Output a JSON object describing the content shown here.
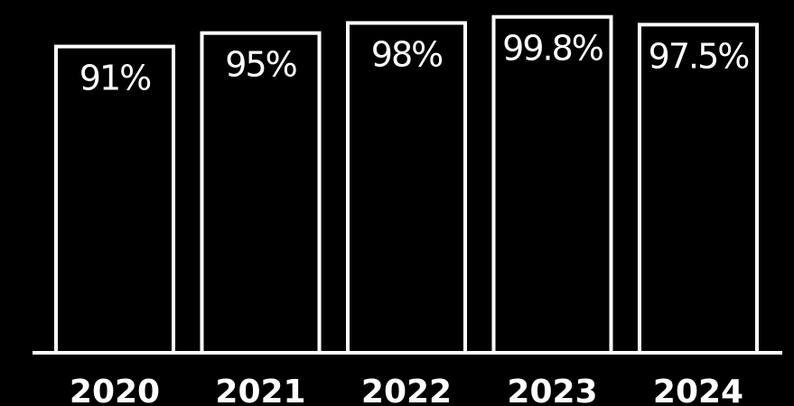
{
  "chart_data": {
    "type": "bar",
    "categories": [
      "2020",
      "2021",
      "2022",
      "2023",
      "2024"
    ],
    "values": [
      91,
      95,
      98,
      99.8,
      97.5
    ],
    "data_labels": [
      "91%",
      "95%",
      "98%",
      "99.8%",
      "97.5%"
    ],
    "title": "",
    "xlabel": "",
    "ylabel": "",
    "ylim": [
      0,
      100
    ],
    "grid": false,
    "legend": "none",
    "colors": {
      "background": "#000000",
      "bar_fill": "#000000",
      "bar_outline": "#ffffff",
      "text": "#ffffff"
    }
  }
}
